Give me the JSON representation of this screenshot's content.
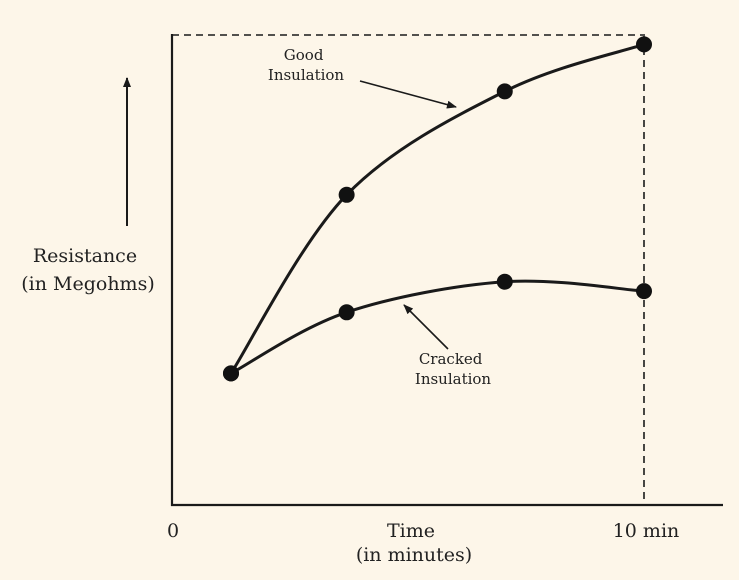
{
  "chart_data": {
    "type": "line",
    "title": "",
    "ylabel_lines": [
      "Resistance",
      "(in Megohms)"
    ],
    "xlabel_lines": [
      "Time",
      "(in minutes)"
    ],
    "x_ticks": [
      {
        "value": 0,
        "label": "0"
      },
      {
        "value": 10,
        "label": "10 min"
      }
    ],
    "xlim": [
      0,
      11.6
    ],
    "ylim": [
      0,
      10
    ],
    "series": [
      {
        "name_lines": [
          "Good",
          "Insulation"
        ],
        "x": [
          1.25,
          3.7,
          7.05,
          10
        ],
        "y": [
          2.8,
          6.6,
          8.8,
          9.8
        ]
      },
      {
        "name_lines": [
          "Cracked",
          "Insulation"
        ],
        "x": [
          1.25,
          3.7,
          7.05,
          10
        ],
        "y": [
          2.8,
          4.1,
          4.75,
          4.55
        ]
      }
    ],
    "colors": {
      "background": "#fdf6e9",
      "ink": "#1a1a1a"
    }
  }
}
